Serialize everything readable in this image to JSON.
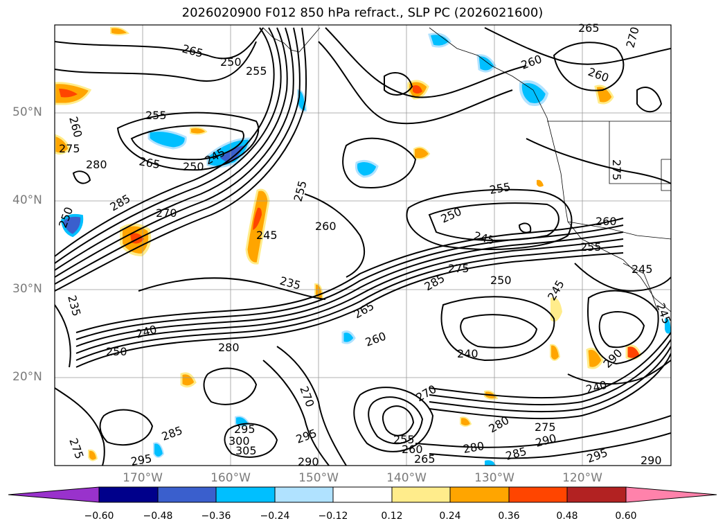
{
  "title": "2026020900 F012 850 hPa refract., SLP PC (2026021600)",
  "lat_labels": [
    "50°N",
    "40°N",
    "30°N",
    "20°N"
  ],
  "lon_labels": [
    "170°W",
    "160°W",
    "150°W",
    "140°W",
    "130°W",
    "120°W"
  ],
  "contour_labels": [
    "265",
    "255",
    "250",
    "265",
    "260",
    "255",
    "260",
    "275",
    "280",
    "265",
    "250",
    "245",
    "285",
    "270",
    "245",
    "255",
    "260",
    "255",
    "250",
    "245",
    "260",
    "255",
    "245",
    "275",
    "285",
    "235",
    "250",
    "245",
    "235",
    "240",
    "250",
    "280",
    "265",
    "260",
    "240",
    "290",
    "240",
    "285",
    "295",
    "300",
    "305",
    "295",
    "290",
    "255",
    "260",
    "265",
    "270",
    "280",
    "285",
    "290",
    "295",
    "290",
    "275",
    "295",
    "270",
    "250",
    "275",
    "280",
    "260",
    "270",
    "275",
    "245"
  ],
  "colorbar": {
    "ticks": [
      "−0.60",
      "−0.48",
      "−0.36",
      "−0.24",
      "−0.12",
      "0.12",
      "0.24",
      "0.36",
      "0.48",
      "0.60"
    ],
    "colors": [
      "#9932cc",
      "#00008b",
      "#3a5fcd",
      "#00bfff",
      "#b0e2ff",
      "#ffffff",
      "#ffec8b",
      "#ffa500",
      "#ff4500",
      "#b22222",
      "#ff82ab"
    ]
  },
  "colors": {
    "contour": "#000000",
    "grid": "#999999",
    "tick_label": "#7a7a7a"
  }
}
